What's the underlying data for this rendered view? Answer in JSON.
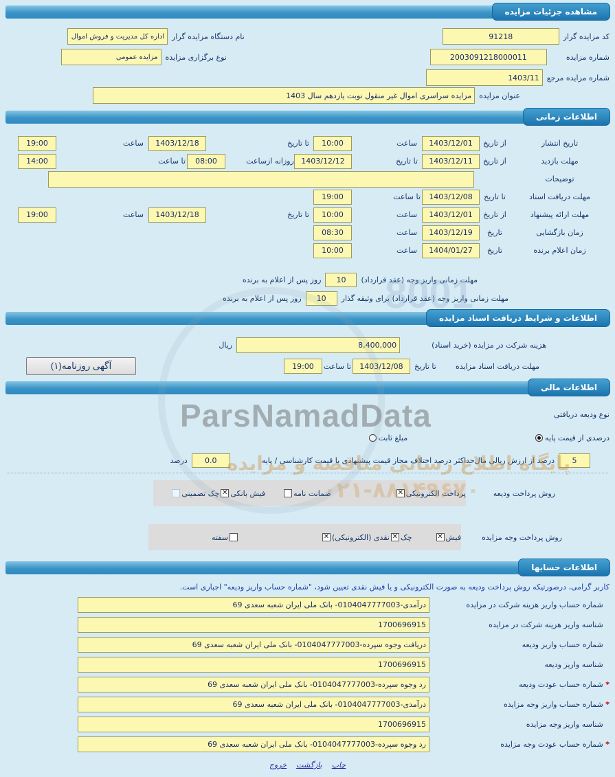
{
  "watermark": {
    "brand": "ParsNamadData",
    "line1": "پایگاه اطلاع رسانی مناقصه و مزایده",
    "line2": "۰۲۱-۸۸۱۴۹۶۷۰",
    "code": "8001"
  },
  "sections": {
    "details": {
      "title": "مشاهده جزئیات مزایده",
      "auctioneer_code": {
        "label": "کد مزایده گزار",
        "value": "91218"
      },
      "auctioneer_name": {
        "label": "نام دستگاه مزایده گزار",
        "value": "اداره کل مدیریت و فروش اموال"
      },
      "auction_number": {
        "label": "شماره مزایده",
        "value": "2003091218000011"
      },
      "auction_type": {
        "label": "نوع برگزاری مزایده",
        "value": "مزایده عمومی"
      },
      "ref_number": {
        "label": "شماره مزایده مرجع",
        "value": "1403/11"
      },
      "auction_title": {
        "label": "عنوان مزایده",
        "value": "مزایده سراسری اموال غیر منقول نوبت یازدهم سال 1403"
      }
    },
    "timing": {
      "title": "اطلاعات زمانی",
      "publish": {
        "label": "تاریخ انتشار",
        "from_label": "از تاریخ",
        "from_date": "1403/12/01",
        "from_time_label": "ساعت",
        "from_time": "10:00",
        "to_label": "تا تاریخ",
        "to_date": "1403/12/18",
        "to_time_label": "ساعت",
        "to_time": "19:00"
      },
      "visit": {
        "label": "مهلت بازدید",
        "from_label": "از تاریخ",
        "from_date": "1403/12/11",
        "to_label": "تا تاریخ",
        "to_date": "1403/12/12",
        "daily_label": "روزانه ازساعت",
        "daily_from": "08:00",
        "to_time_label": "تا ساعت",
        "to_time": "14:00"
      },
      "notes": {
        "label": "توضیحات",
        "value": ""
      },
      "doc_deadline": {
        "label": "مهلت دریافت اسناد",
        "to_label": "تا تاریخ",
        "to_date": "1403/12/08",
        "time_label": "تا ساعت",
        "time": "19:00"
      },
      "offer": {
        "label": "مهلت ارائه پیشنهاد",
        "from_label": "از تاریخ",
        "from_date": "1403/12/01",
        "from_time_label": "ساعت",
        "from_time": "10:00",
        "to_label": "تا تاریخ",
        "to_date": "1403/12/18",
        "to_time_label": "ساعت",
        "to_time": "19:00"
      },
      "opening": {
        "label": "زمان بازگشایی",
        "date_label": "تاریخ",
        "date": "1403/12/19",
        "time_label": "ساعت",
        "time": "08:30"
      },
      "winner": {
        "label": "زمان اعلام برنده",
        "date_label": "تاریخ",
        "date": "1404/01/27",
        "time_label": "ساعت",
        "time": "10:00"
      },
      "pay_deadline": {
        "label": "مهلت زمانی واریز وجه (عقد قرارداد)",
        "value": "10",
        "suffix": "روز پس از اعلام به برنده"
      },
      "pay_deadline_guarantor": {
        "label": "مهلت زمانی واریز وجه (عقد قرارداد) برای وثیقه گذار",
        "value": "10",
        "suffix": "روز پس از اعلام به برنده"
      }
    },
    "documents": {
      "title": "اطلاعات و شرایط دریافت اسناد مزایده",
      "fee": {
        "label": "هزینه شرکت در مزایده (خرید اسناد)",
        "value": "8,400,000",
        "unit": "ریال"
      },
      "deadline": {
        "label": "مهلت دریافت اسناد مزایده",
        "to_label": "تا تاریخ",
        "to_date": "1403/12/08",
        "time_label": "تا ساعت",
        "time": "19:00"
      },
      "newspaper_button": "آگهی روزنامه(۱)"
    },
    "financial": {
      "title": "اطلاعات مالی",
      "deposit_type_label": "نوع ودیعه دریافتی",
      "radios": [
        {
          "label": "درصدی از قیمت پایه",
          "selected": true
        },
        {
          "label": "مبلغ ثابت",
          "selected": false
        }
      ],
      "percent": {
        "value": "5",
        "label": "درصد از ارزش ریالی مال"
      },
      "max_diff": {
        "label": "حداکثر درصد اختلاف مجاز قیمت پیشنهادی با قیمت کارشناسی / پایه",
        "value": "0.0",
        "unit": "درصد"
      },
      "deposit_methods": {
        "label": "روش پرداخت ودیعه",
        "items": [
          {
            "label": "پرداخت الکترونیکی",
            "checked": true
          },
          {
            "label": "ضمانت نامه",
            "checked": false
          },
          {
            "label": "فیش بانکی",
            "checked": true
          },
          {
            "label": "چک تضمینی",
            "checked": false,
            "light": true
          }
        ]
      },
      "payment_methods": {
        "label": "روش پرداخت وجه مزایده",
        "items": [
          {
            "label": "فیش",
            "checked": true
          },
          {
            "label": "چک",
            "checked": true
          },
          {
            "label": "نقدی (الکترونیکی)",
            "checked": true
          },
          {
            "label": "سفته",
            "checked": false,
            "box_right": true
          }
        ]
      }
    },
    "accounts": {
      "title": "اطلاعات حسابها",
      "notice": "کاربر گرامی، درصورتیکه روش پرداخت ودیعه به صورت الکترونیکی و یا فیش نقدی تعیین شود، \"شماره حساب واریز ودیعه\" اجباری است.",
      "required_mark": "*",
      "rows": [
        {
          "label": "شماره حساب واریز هزینه شرکت در مزایده",
          "value": "درآمدی-0104047777003- بانک ملی ایران شعبه سعدی 69",
          "required": false
        },
        {
          "label": "شناسه واریز هزینه شرکت در مزایده",
          "value": "1700696915",
          "required": false
        },
        {
          "label": "شماره حساب واریز ودیعه",
          "value": "دریافت وجوه سپرده-0104047777003- بانک ملی ایران شعبه سعدی 69",
          "required": false
        },
        {
          "label": "شناسه واریز ودیعه",
          "value": "1700696915",
          "required": false
        },
        {
          "label": "شماره حساب عودت ودیعه",
          "value": "رد وجوه سپرده-0104047777003- بانک ملی ایران شعبه سعدی 69",
          "required": true
        },
        {
          "label": "شماره حساب واریز وجه مزایده",
          "value": "درآمدی-0104047777003- بانک ملی ایران شعبه سعدی 69",
          "required": true
        },
        {
          "label": "شناسه واریز وجه مزایده",
          "value": "1700696915",
          "required": false
        },
        {
          "label": "شماره حساب عودت وجه مزایده",
          "value": "رد وجوه سپرده-0104047777003- بانک ملی ایران شعبه سعدی 69",
          "required": true
        }
      ]
    }
  },
  "footer": {
    "links": [
      {
        "label": "چاپ"
      },
      {
        "label": "بازگشت"
      },
      {
        "label": "خروج"
      }
    ]
  }
}
